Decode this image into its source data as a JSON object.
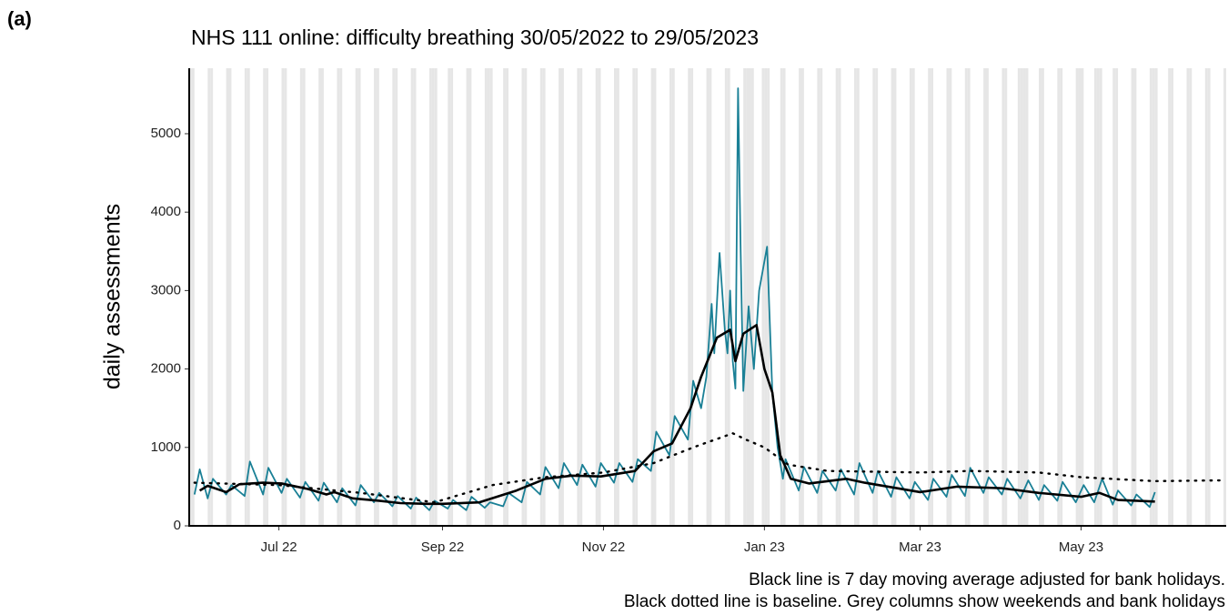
{
  "chart_data": {
    "type": "line",
    "panel_label": "(a)",
    "title": "NHS 111 online: difficulty breathing 30/05/2022 to 29/05/2023",
    "ylabel": "daily assessments",
    "notes": [
      "Black line is 7 day moving average adjusted for bank holidays.",
      "Black dotted line is baseline. Grey columns show weekends and bank holidays"
    ],
    "xlim": [
      "2022-05-28",
      "2023-06-25"
    ],
    "xticks": [
      {
        "value": "2022-07-01",
        "label": "Jul 22"
      },
      {
        "value": "2022-09-01",
        "label": "Sep 22"
      },
      {
        "value": "2022-11-01",
        "label": "Nov 22"
      },
      {
        "value": "2023-01-01",
        "label": "Jan 23"
      },
      {
        "value": "2023-03-01",
        "label": "Mar 23"
      },
      {
        "value": "2023-05-01",
        "label": "May 23"
      }
    ],
    "ylim": [
      0,
      5835
    ],
    "yticks": [
      0,
      1000,
      2000,
      3000,
      4000,
      5000
    ],
    "shaded_columns": {
      "color": "#e6e6e6",
      "weekends": true,
      "bank_holidays": [
        "2022-08-29",
        "2022-09-19",
        "2022-12-26",
        "2022-12-27",
        "2023-01-02",
        "2023-04-07",
        "2023-04-10",
        "2023-05-01",
        "2023-05-08",
        "2023-05-29"
      ]
    },
    "series": [
      {
        "color": "#1a8096",
        "style": "solid",
        "width": 1.8,
        "x": [
          "2022-05-30",
          "2022-06-01",
          "2022-06-04",
          "2022-06-06",
          "2022-06-11",
          "2022-06-13",
          "2022-06-18",
          "2022-06-20",
          "2022-06-25",
          "2022-06-27",
          "2022-07-02",
          "2022-07-04",
          "2022-07-09",
          "2022-07-11",
          "2022-07-16",
          "2022-07-18",
          "2022-07-23",
          "2022-07-25",
          "2022-07-30",
          "2022-08-01",
          "2022-08-06",
          "2022-08-08",
          "2022-08-13",
          "2022-08-15",
          "2022-08-20",
          "2022-08-22",
          "2022-08-27",
          "2022-08-29",
          "2022-09-03",
          "2022-09-05",
          "2022-09-10",
          "2022-09-12",
          "2022-09-17",
          "2022-09-19",
          "2022-09-24",
          "2022-09-26",
          "2022-10-01",
          "2022-10-03",
          "2022-10-08",
          "2022-10-10",
          "2022-10-15",
          "2022-10-17",
          "2022-10-22",
          "2022-10-24",
          "2022-10-29",
          "2022-10-31",
          "2022-11-05",
          "2022-11-07",
          "2022-11-12",
          "2022-11-14",
          "2022-11-19",
          "2022-11-21",
          "2022-11-26",
          "2022-11-28",
          "2022-12-03",
          "2022-12-05",
          "2022-12-08",
          "2022-12-10",
          "2022-12-12",
          "2022-12-13",
          "2022-12-15",
          "2022-12-17",
          "2022-12-18",
          "2022-12-19",
          "2022-12-20",
          "2022-12-21",
          "2022-12-22",
          "2022-12-23",
          "2022-12-24",
          "2022-12-26",
          "2022-12-28",
          "2022-12-30",
          "2023-01-02",
          "2023-01-04",
          "2023-01-06",
          "2023-01-08",
          "2023-01-09",
          "2023-01-14",
          "2023-01-16",
          "2023-01-21",
          "2023-01-23",
          "2023-01-28",
          "2023-01-30",
          "2023-02-04",
          "2023-02-06",
          "2023-02-11",
          "2023-02-13",
          "2023-02-18",
          "2023-02-20",
          "2023-02-25",
          "2023-02-27",
          "2023-03-04",
          "2023-03-06",
          "2023-03-11",
          "2023-03-13",
          "2023-03-18",
          "2023-03-20",
          "2023-03-25",
          "2023-03-27",
          "2023-04-01",
          "2023-04-03",
          "2023-04-08",
          "2023-04-11",
          "2023-04-15",
          "2023-04-17",
          "2023-04-22",
          "2023-04-24",
          "2023-04-29",
          "2023-05-02",
          "2023-05-06",
          "2023-05-09",
          "2023-05-13",
          "2023-05-15",
          "2023-05-20",
          "2023-05-22",
          "2023-05-27",
          "2023-05-29"
        ],
        "values": [
          400,
          720,
          350,
          600,
          400,
          520,
          380,
          820,
          400,
          740,
          420,
          600,
          360,
          560,
          320,
          550,
          300,
          480,
          260,
          520,
          300,
          420,
          250,
          380,
          220,
          360,
          200,
          320,
          220,
          330,
          200,
          370,
          230,
          300,
          250,
          420,
          300,
          560,
          400,
          750,
          480,
          800,
          520,
          780,
          500,
          800,
          550,
          800,
          560,
          850,
          700,
          1200,
          900,
          1400,
          1100,
          1850,
          1500,
          1900,
          2830,
          2200,
          3480,
          2500,
          2200,
          3000,
          2100,
          1750,
          5580,
          3500,
          1720,
          2800,
          2000,
          3000,
          3560,
          1700,
          1000,
          600,
          850,
          450,
          750,
          420,
          700,
          450,
          720,
          400,
          800,
          420,
          700,
          370,
          620,
          350,
          560,
          330,
          600,
          370,
          650,
          380,
          740,
          420,
          620,
          400,
          600,
          350,
          580,
          330,
          520,
          320,
          560,
          300,
          520,
          300,
          600,
          270,
          450,
          260,
          400,
          240,
          430
        ]
      },
      {
        "color": "#000000",
        "style": "solid",
        "width": 2.6,
        "x": [
          "2022-06-01",
          "2022-06-04",
          "2022-06-11",
          "2022-06-16",
          "2022-06-25",
          "2022-07-02",
          "2022-07-12",
          "2022-07-19",
          "2022-07-22",
          "2022-07-29",
          "2022-08-08",
          "2022-08-16",
          "2022-08-26",
          "2022-09-01",
          "2022-09-15",
          "2022-09-29",
          "2022-10-10",
          "2022-10-20",
          "2022-10-31",
          "2022-11-13",
          "2022-11-20",
          "2022-11-27",
          "2022-12-04",
          "2022-12-08",
          "2022-12-14",
          "2022-12-19",
          "2022-12-21",
          "2022-12-24",
          "2022-12-29",
          "2023-01-01",
          "2023-01-04",
          "2023-01-07",
          "2023-01-11",
          "2023-01-18",
          "2023-02-01",
          "2023-02-08",
          "2023-03-01",
          "2023-03-15",
          "2023-04-01",
          "2023-04-15",
          "2023-05-01",
          "2023-05-08",
          "2023-05-15",
          "2023-05-29"
        ],
        "values": [
          450,
          510,
          430,
          530,
          550,
          540,
          470,
          400,
          430,
          350,
          320,
          290,
          280,
          280,
          300,
          450,
          600,
          640,
          630,
          700,
          950,
          1050,
          1500,
          1900,
          2400,
          2500,
          2100,
          2450,
          2560,
          2000,
          1700,
          900,
          600,
          540,
          600,
          550,
          430,
          500,
          480,
          420,
          370,
          420,
          330,
          310
        ]
      },
      {
        "color": "#000000",
        "style": "dotted",
        "width": 2.4,
        "x": [
          "2022-05-30",
          "2022-07-01",
          "2022-08-01",
          "2022-08-29",
          "2022-09-20",
          "2022-10-10",
          "2022-11-01",
          "2022-11-20",
          "2022-12-05",
          "2022-12-20",
          "2022-12-25",
          "2023-01-01",
          "2023-01-10",
          "2023-01-25",
          "2023-03-01",
          "2023-03-20",
          "2023-04-15",
          "2023-05-01",
          "2023-05-29",
          "2023-06-23"
        ],
        "values": [
          550,
          520,
          420,
          300,
          520,
          620,
          680,
          800,
          1000,
          1180,
          1100,
          1000,
          780,
          700,
          680,
          700,
          680,
          620,
          570,
          580
        ]
      }
    ]
  }
}
